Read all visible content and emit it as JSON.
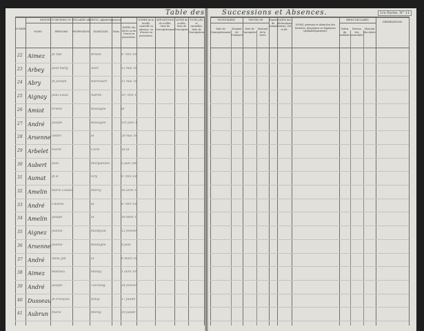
{
  "header": {
    "title_left": "Table des",
    "title_right": "Successions et Absences.",
    "part": "1re Partie. N° 11"
  },
  "columns_left": {
    "group": "INDIVIDUS DÉCÉDÉS OU DÉCLARÉS ABSENTS, alphabétiquement.",
    "numeros": "NUMÉROS",
    "noms": "NOMS",
    "prenoms": "PRÉNOMS",
    "professions": "PROFESSIONS",
    "domiciles": "DOMICILES",
    "etat": "États",
    "dates": "DATES des décès ou de l'envoi en possession.",
    "duree": "DURÉE de la tutelle, curatelle ou absence, ou d'envoi en possession.",
    "appositions": "APPOSITIONS de scellés. Date de l'enregistrement.",
    "levee": "LEVÉE de scellés. Date de l'enregistrement.",
    "tutelles": "TUTELLES et curatelles. Date de l'enregistrement."
  },
  "columns_right": {
    "inventaires": "INVENTAIRES",
    "inv_date": "Date de l'enregistrement",
    "inv_montant": "Montant de l'estimation",
    "ventes": "VENTES DE MEUBLES",
    "vente_date": "Date de l'enregistrement",
    "vente_montant": "Montant de la vente",
    "sommier": "Numéro du sommier",
    "dates_decl": "DATES des déclarations. Bureau, Vol. et fol.",
    "heritiers": "NOMS, prénoms et domiciles des héritiers, donataires ou légataires (alphabétiquement).",
    "biens": "BIENS DÉCLARÉS",
    "biens_mobilier": "Valeur du mobilier",
    "biens_revenu": "Revenu des immeubles",
    "biens_droits": "Montant des droits",
    "observations": "OBSERVATIONS"
  },
  "rows": [
    {
      "n": "22",
      "nom": "Aimez",
      "prenom": "Jn Ppe",
      "domicile": "Brielle",
      "date": "8 7bre 1860"
    },
    {
      "n": "23",
      "nom": "Arbey",
      "prenom": "Jean-marg",
      "domicile": "Aure",
      "date": "12 mai 1860"
    },
    {
      "n": "24",
      "nom": "Abry",
      "prenom": "Jn Joseph",
      "domicile": "Rarecourt",
      "date": "11 mai 1860"
    },
    {
      "n": "25",
      "nom": "Aignay",
      "prenom": "Jean Louis",
      "domicile": "Autrée",
      "date": "19 7bre 1860"
    },
    {
      "n": "26",
      "nom": "Amiot",
      "prenom": "Ernest",
      "domicile": "Boulogne",
      "date": "id"
    },
    {
      "n": "27",
      "nom": "André",
      "prenom": "Joseph",
      "domicile": "Boulogne",
      "date": "1er janv 1861"
    },
    {
      "n": "28",
      "nom": "Arsenne",
      "prenom": "André",
      "domicile": "id",
      "date": "28 mai 1860"
    },
    {
      "n": "29",
      "nom": "Arbelet",
      "prenom": "Pierre",
      "domicile": "Cerle",
      "date": "18 id"
    },
    {
      "n": "30",
      "nom": "Aubert",
      "prenom": "Jean",
      "domicile": "Morgueilles",
      "date": "5 juin 1860"
    },
    {
      "n": "31",
      "nom": "Aumat",
      "prenom": "Jn B",
      "domicile": "Ivry",
      "date": "9 7bre 1860"
    },
    {
      "n": "32",
      "nom": "Amelin",
      "prenom": "Marie Louise",
      "domicile": "Mérey",
      "date": "16 avril 1860"
    },
    {
      "n": "33",
      "nom": "André",
      "prenom": "Charles",
      "domicile": "id",
      "date": "8 7bre 1860"
    },
    {
      "n": "34",
      "nom": "Amelin",
      "prenom": "Joseph",
      "domicile": "id",
      "date": "18 8bre 1860"
    },
    {
      "n": "35",
      "nom": "Aignez",
      "prenom": "Jeanne",
      "domicile": "Montjean",
      "date": "12 fevrier"
    },
    {
      "n": "36",
      "nom": "Arsenne",
      "prenom": "Jeanne",
      "domicile": "Boulogne",
      "date": "9 janv"
    },
    {
      "n": "37",
      "nom": "André",
      "prenom": "Anne Jph",
      "domicile": "id",
      "date": "9 mars 1860"
    },
    {
      "n": "38",
      "nom": "Aimez",
      "prenom": "Mathieu",
      "domicile": "Monay",
      "date": "1 avril 1861"
    },
    {
      "n": "39",
      "nom": "André",
      "prenom": "Joseph",
      "domicile": "Turcoing",
      "date": "24 février 1861"
    },
    {
      "n": "40",
      "nom": "Dusseaux",
      "prenom": "Jn François",
      "domicile": "Jenay",
      "date": "17 juillet 1861"
    },
    {
      "n": "41",
      "nom": "Aubrun",
      "prenom": "Marie",
      "domicile": "Moray",
      "date": "19 juillet 1861"
    }
  ]
}
